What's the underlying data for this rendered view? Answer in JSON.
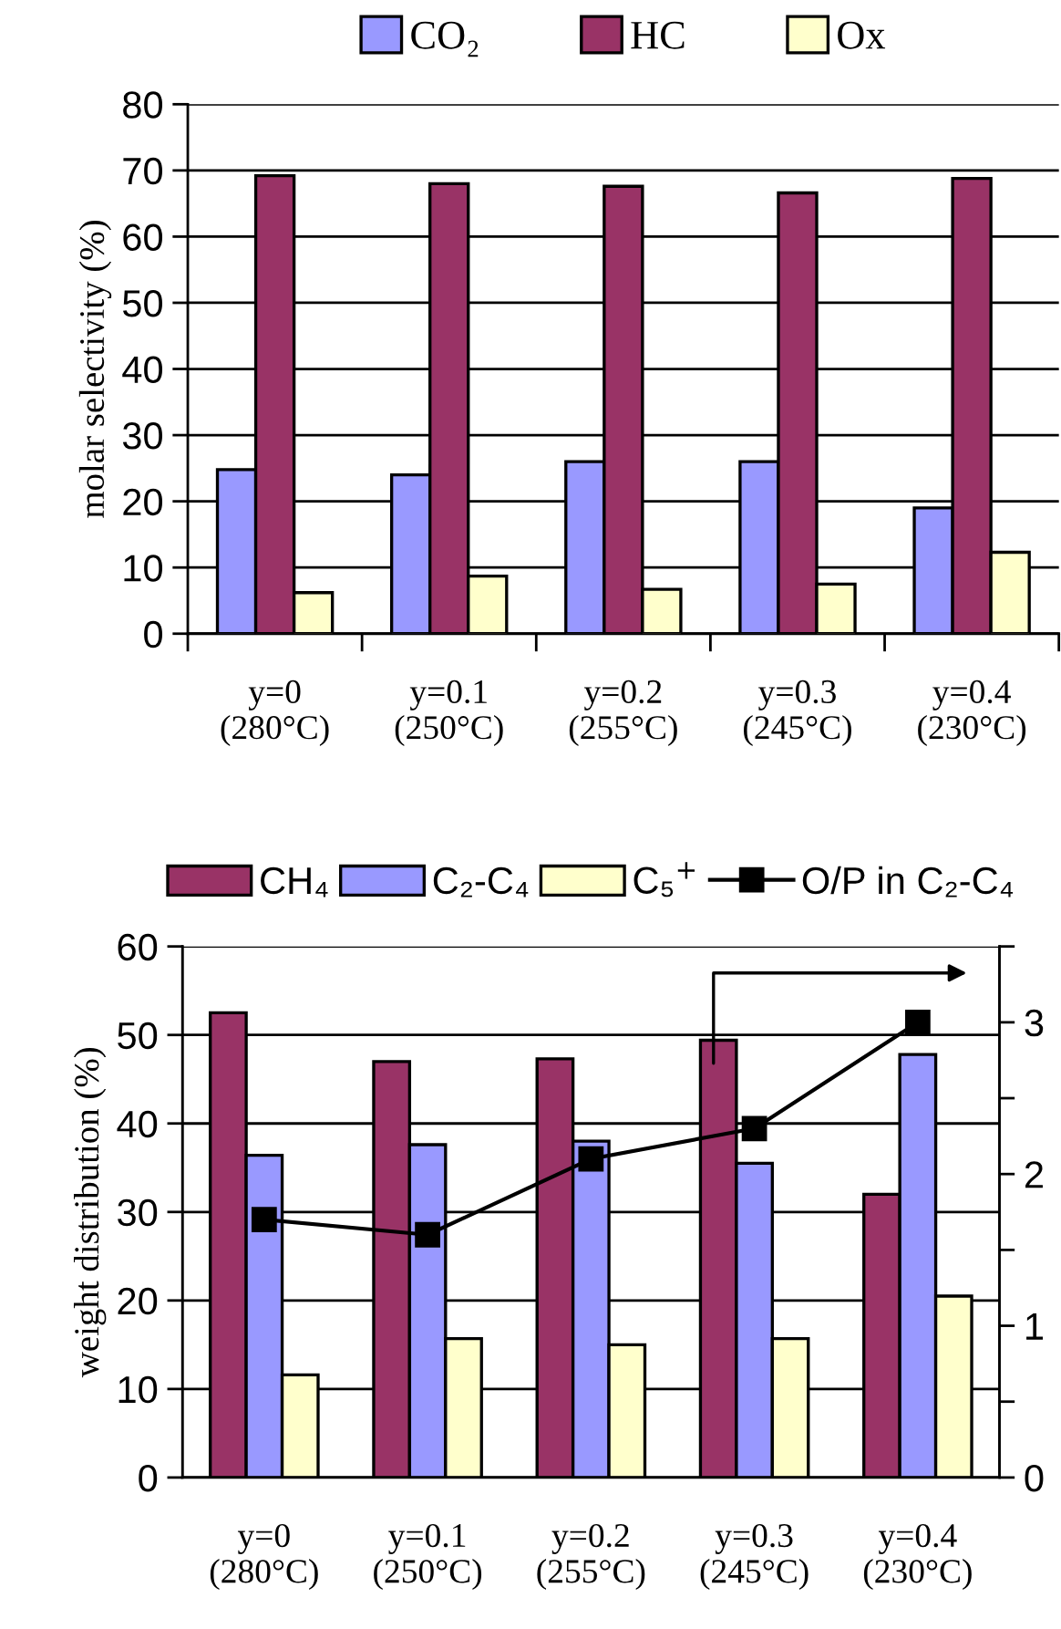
{
  "chart_data": [
    {
      "type": "bar",
      "ylabel": "molar selectivity (%)",
      "categories": [
        "y=0\n(280°C)",
        "y=0.1\n(250°C)",
        "y=0.2\n(255°C)",
        "y=0.3\n(245°C)",
        "y=0.4\n(230°C)"
      ],
      "series": [
        {
          "name": "CO₂",
          "color": "#9999ff",
          "values": [
            24.8,
            24,
            26,
            26,
            19
          ]
        },
        {
          "name": "HC",
          "color": "#993366",
          "values": [
            69.2,
            68,
            67.6,
            66.6,
            68.8
          ]
        },
        {
          "name": "Ox",
          "color": "#ffffcc",
          "values": [
            6.2,
            8.7,
            6.7,
            7.5,
            12.3
          ]
        }
      ],
      "ylim": [
        0,
        80
      ],
      "yticks": [
        0,
        10,
        20,
        30,
        40,
        50,
        60,
        70,
        80
      ],
      "grid": "y",
      "legend": "top"
    },
    {
      "type": "bar",
      "ylabel": "weight distribution (%)",
      "categories": [
        "y=0\n(280°C)",
        "y=0.1\n(250°C)",
        "y=0.2\n(255°C)",
        "y=0.3\n(245°C)",
        "y=0.4\n(230°C)"
      ],
      "series": [
        {
          "name": "CH₄",
          "color": "#993366",
          "values": [
            52.5,
            47,
            47.3,
            49.4,
            32
          ]
        },
        {
          "name": "C₂-C₄",
          "color": "#9999ff",
          "values": [
            36.4,
            37.6,
            38,
            35.5,
            47.8
          ]
        },
        {
          "name": "C₅$^{+}$",
          "color": "#ffffcc",
          "values": [
            11.6,
            15.7,
            15,
            15.7,
            20.5
          ]
        },
        {
          "name": "O/P in C₂-C₄",
          "type": "line",
          "axis": "y2",
          "color": "#000000",
          "marker": "square",
          "values": [
            1.7,
            1.6,
            2.1,
            2.3,
            3.0
          ]
        }
      ],
      "ylim": [
        0,
        60
      ],
      "yticks": [
        0,
        10,
        20,
        30,
        40,
        50,
        60
      ],
      "y2lim": [
        0,
        3.5
      ],
      "y2ticks": [
        0,
        {
          "value": 0.5,
          "label": null
        },
        1,
        {
          "value": 1.5,
          "label": null
        },
        2,
        {
          "value": 2.5,
          "label": null
        },
        3,
        {
          "value": 3.5,
          "label": null
        }
      ],
      "grid": "y",
      "legend": "top"
    }
  ]
}
